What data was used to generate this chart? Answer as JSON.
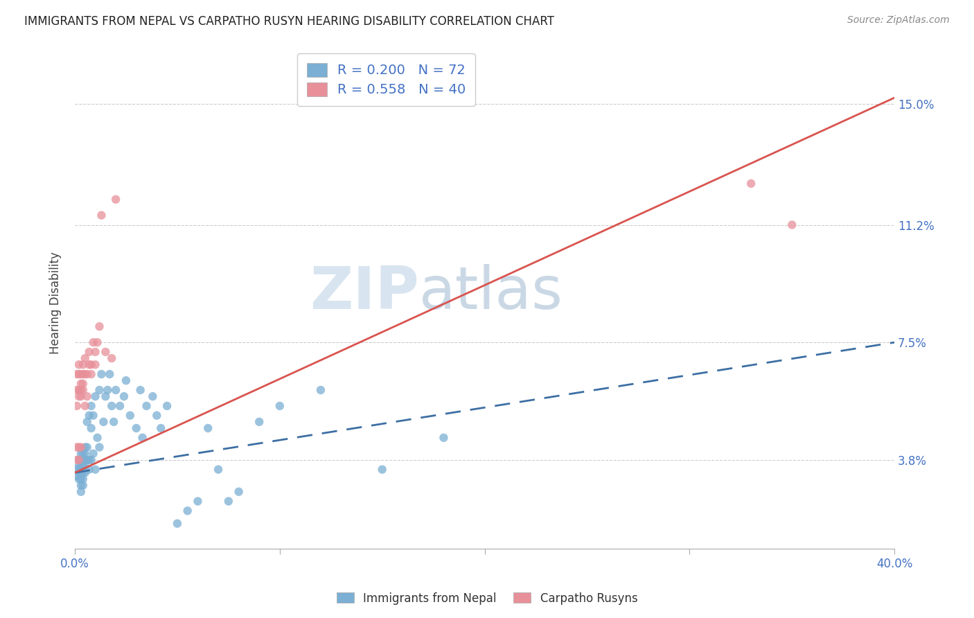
{
  "title": "IMMIGRANTS FROM NEPAL VS CARPATHO RUSYN HEARING DISABILITY CORRELATION CHART",
  "source": "Source: ZipAtlas.com",
  "ylabel": "Hearing Disability",
  "ytick_labels": [
    "3.8%",
    "7.5%",
    "11.2%",
    "15.0%"
  ],
  "ytick_values": [
    0.038,
    0.075,
    0.112,
    0.15
  ],
  "xlim": [
    0.0,
    0.4
  ],
  "ylim": [
    0.01,
    0.165
  ],
  "xtick_positions": [
    0.0,
    0.1,
    0.2,
    0.3,
    0.4
  ],
  "xtick_labels": [
    "0.0%",
    "",
    "",
    "",
    "40.0%"
  ],
  "legend_nepal": {
    "R": 0.2,
    "N": 72,
    "label": "Immigrants from Nepal"
  },
  "legend_rusyn": {
    "R": 0.558,
    "N": 40,
    "label": "Carpatho Rusyns"
  },
  "nepal_color": "#7bafd4",
  "rusyn_color": "#e8909a",
  "nepal_line_color": "#3d6fa3",
  "rusyn_line_color": "#d9534f",
  "watermark_zip": "ZIP",
  "watermark_atlas": "atlas",
  "nepal_points_x": [
    0.001,
    0.001,
    0.002,
    0.002,
    0.002,
    0.002,
    0.003,
    0.003,
    0.003,
    0.003,
    0.003,
    0.003,
    0.003,
    0.004,
    0.004,
    0.004,
    0.004,
    0.004,
    0.004,
    0.005,
    0.005,
    0.005,
    0.005,
    0.005,
    0.006,
    0.006,
    0.006,
    0.007,
    0.007,
    0.007,
    0.008,
    0.008,
    0.008,
    0.009,
    0.009,
    0.01,
    0.01,
    0.011,
    0.012,
    0.012,
    0.013,
    0.014,
    0.015,
    0.016,
    0.017,
    0.018,
    0.019,
    0.02,
    0.022,
    0.024,
    0.025,
    0.027,
    0.03,
    0.032,
    0.033,
    0.035,
    0.038,
    0.04,
    0.042,
    0.045,
    0.05,
    0.055,
    0.06,
    0.065,
    0.07,
    0.075,
    0.08,
    0.09,
    0.1,
    0.12,
    0.15,
    0.18
  ],
  "nepal_points_y": [
    0.035,
    0.033,
    0.038,
    0.036,
    0.034,
    0.032,
    0.038,
    0.04,
    0.036,
    0.034,
    0.032,
    0.03,
    0.028,
    0.04,
    0.038,
    0.036,
    0.034,
    0.032,
    0.03,
    0.042,
    0.04,
    0.038,
    0.036,
    0.034,
    0.05,
    0.042,
    0.038,
    0.052,
    0.038,
    0.035,
    0.038,
    0.055,
    0.048,
    0.052,
    0.04,
    0.058,
    0.035,
    0.045,
    0.06,
    0.042,
    0.065,
    0.05,
    0.058,
    0.06,
    0.065,
    0.055,
    0.05,
    0.06,
    0.055,
    0.058,
    0.063,
    0.052,
    0.048,
    0.06,
    0.045,
    0.055,
    0.058,
    0.052,
    0.048,
    0.055,
    0.018,
    0.022,
    0.025,
    0.048,
    0.035,
    0.025,
    0.028,
    0.05,
    0.055,
    0.06,
    0.035,
    0.045
  ],
  "rusyn_points_x": [
    0.001,
    0.001,
    0.001,
    0.001,
    0.001,
    0.002,
    0.002,
    0.002,
    0.002,
    0.002,
    0.002,
    0.003,
    0.003,
    0.003,
    0.003,
    0.003,
    0.004,
    0.004,
    0.004,
    0.004,
    0.005,
    0.005,
    0.005,
    0.006,
    0.006,
    0.007,
    0.007,
    0.008,
    0.008,
    0.009,
    0.01,
    0.01,
    0.011,
    0.012,
    0.013,
    0.015,
    0.018,
    0.02,
    0.33,
    0.35
  ],
  "rusyn_points_y": [
    0.038,
    0.042,
    0.055,
    0.06,
    0.065,
    0.038,
    0.042,
    0.058,
    0.065,
    0.068,
    0.06,
    0.042,
    0.06,
    0.065,
    0.062,
    0.058,
    0.062,
    0.065,
    0.068,
    0.06,
    0.055,
    0.07,
    0.065,
    0.065,
    0.058,
    0.068,
    0.072,
    0.065,
    0.068,
    0.075,
    0.068,
    0.072,
    0.075,
    0.08,
    0.115,
    0.072,
    0.07,
    0.12,
    0.125,
    0.112
  ],
  "nepal_line": {
    "x0": 0.0,
    "y0": 0.034,
    "x1": 0.4,
    "y1": 0.075
  },
  "rusyn_line": {
    "x0": 0.0,
    "y0": 0.034,
    "x1": 0.4,
    "y1": 0.152
  }
}
